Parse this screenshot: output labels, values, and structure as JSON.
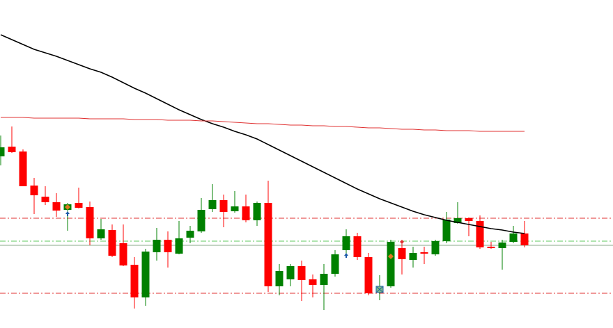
{
  "chart_data": {
    "type": "candlestick",
    "categories": [
      null,
      null,
      null,
      null,
      null,
      null,
      null,
      null,
      null,
      null,
      null,
      null,
      null,
      null,
      null,
      null,
      null,
      null,
      null,
      null,
      null,
      null,
      null,
      null,
      null,
      null,
      null,
      null,
      null,
      null,
      null,
      null,
      null,
      null,
      null,
      null,
      null,
      null,
      null,
      null,
      null,
      null,
      null,
      null,
      null,
      null,
      null,
      null
    ],
    "ylim": [
      0,
      472
    ],
    "up_color": "#008000",
    "down_color": "#ff0000",
    "open": [
      247,
      261,
      254,
      205,
      189,
      181,
      170,
      180,
      174,
      129,
      141,
      122,
      91,
      44,
      109,
      127,
      107,
      130,
      139,
      171,
      184,
      168,
      175,
      155,
      180,
      60,
      70,
      89,
      70,
      62,
      78,
      112,
      132,
      102,
      52,
      60,
      115,
      98,
      109,
      106,
      125,
      151,
      158,
      154,
      117,
      115,
      124,
      136
    ],
    "high": [
      277,
      290,
      257,
      216,
      204,
      194,
      180,
      202,
      182,
      157,
      149,
      149,
      102,
      114,
      144,
      139,
      154,
      147,
      187,
      207,
      192,
      197,
      192,
      182,
      212,
      92,
      92,
      97,
      77,
      92,
      112,
      142,
      137,
      108,
      76,
      127,
      125,
      117,
      117,
      127,
      167,
      181,
      159,
      162,
      124,
      127,
      147,
      154
    ],
    "low": [
      234,
      252,
      204,
      164,
      177,
      160,
      140,
      172,
      119,
      127,
      102,
      89,
      28,
      32,
      97,
      87,
      106,
      122,
      137,
      167,
      145,
      166,
      152,
      147,
      52,
      47,
      60,
      39,
      44,
      26,
      74,
      102,
      98,
      47,
      40,
      58,
      77,
      87,
      92,
      104,
      122,
      150,
      132,
      114,
      114,
      84,
      122,
      116
    ],
    "close": [
      260,
      253,
      204,
      191,
      181,
      169,
      178,
      173,
      129,
      142,
      104,
      90,
      44,
      110,
      127,
      109,
      129,
      140,
      170,
      184,
      167,
      175,
      155,
      180,
      60,
      82,
      89,
      69,
      62,
      78,
      106,
      132,
      102,
      50,
      59,
      124,
      99,
      108,
      107,
      125,
      156,
      158,
      154,
      116,
      115,
      123,
      136,
      119
    ],
    "lines": [
      {
        "color": "#000000",
        "values": [
          422,
          415,
          408,
          401,
          396,
          391,
          385,
          379,
          373,
          368,
          361,
          353,
          345,
          338,
          330,
          322,
          314,
          307,
          300,
          294,
          289,
          283,
          278,
          272,
          264,
          256,
          248,
          240,
          232,
          224,
          216,
          208,
          200,
          193,
          186,
          180,
          174,
          168,
          163,
          159,
          155,
          152,
          149,
          146,
          143,
          141,
          138,
          136
        ]
      },
      {
        "color": "#e03030",
        "values": [
          303,
          303,
          303,
          302,
          302,
          302,
          302,
          302,
          301,
          301,
          301,
          301,
          300,
          300,
          300,
          299,
          299,
          299,
          298,
          298,
          297,
          296,
          295,
          294,
          294,
          293,
          292,
          292,
          291,
          291,
          290,
          290,
          289,
          288,
          288,
          287,
          286,
          286,
          285,
          285,
          284,
          284,
          284,
          283,
          283,
          283,
          283,
          283
        ]
      }
    ],
    "levels": [
      {
        "value": 158,
        "color": "#e03030",
        "style": "dashdot"
      },
      {
        "value": 50,
        "color": "#e03030",
        "style": "dashdot"
      },
      {
        "value": 125,
        "color": "#5cc85c",
        "style": "dashdot"
      },
      {
        "value": 119,
        "color": "#8aa88a",
        "style": "solid"
      }
    ]
  }
}
